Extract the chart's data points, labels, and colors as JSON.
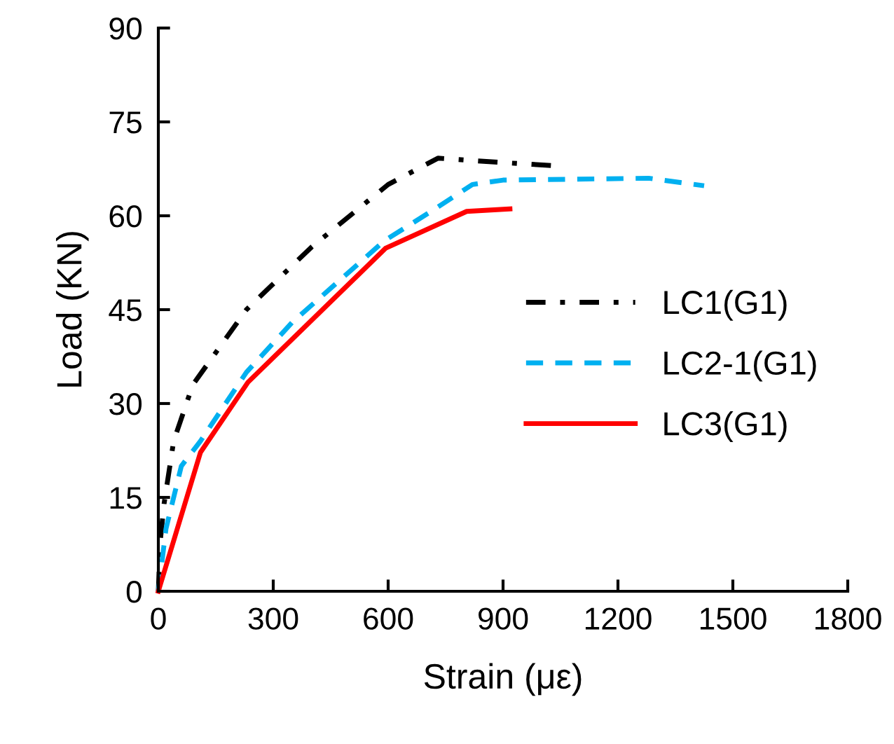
{
  "chart_data": {
    "type": "line",
    "xlabel": "Strain (με)",
    "ylabel": "Load (KN)",
    "xlim": [
      0,
      1800
    ],
    "xticks": [
      0,
      300,
      600,
      900,
      1200,
      1500,
      1800
    ],
    "ylim": [
      0,
      90
    ],
    "yticks": [
      0,
      15,
      30,
      45,
      60,
      75,
      90
    ],
    "grid": false,
    "legend": "right",
    "marker": "none",
    "series": [
      {
        "name": "LC1(G1)",
        "color": "#000000",
        "line_style": "dashdot",
        "x": [
          0,
          5,
          15,
          40,
          90,
          230,
          400,
          600,
          730,
          900,
          1035
        ],
        "values": [
          0,
          8,
          14,
          24,
          33,
          45,
          55,
          65,
          69.2,
          68.5,
          68
        ]
      },
      {
        "name": "LC2-1(G1)",
        "color": "#00b0f0",
        "line_style": "dashed",
        "x": [
          0,
          20,
          60,
          110,
          230,
          350,
          590,
          720,
          820,
          900,
          1280,
          1425
        ],
        "values": [
          0,
          10,
          20,
          24,
          35,
          43,
          56,
          61,
          65,
          65.7,
          66,
          64.8
        ]
      },
      {
        "name": "LC3(G1)",
        "color": "#ff0000",
        "line_style": "solid",
        "x": [
          0,
          110,
          234,
          593,
          805,
          918
        ],
        "values": [
          0,
          22.2,
          33.4,
          54.8,
          60.7,
          61.1
        ]
      }
    ]
  }
}
